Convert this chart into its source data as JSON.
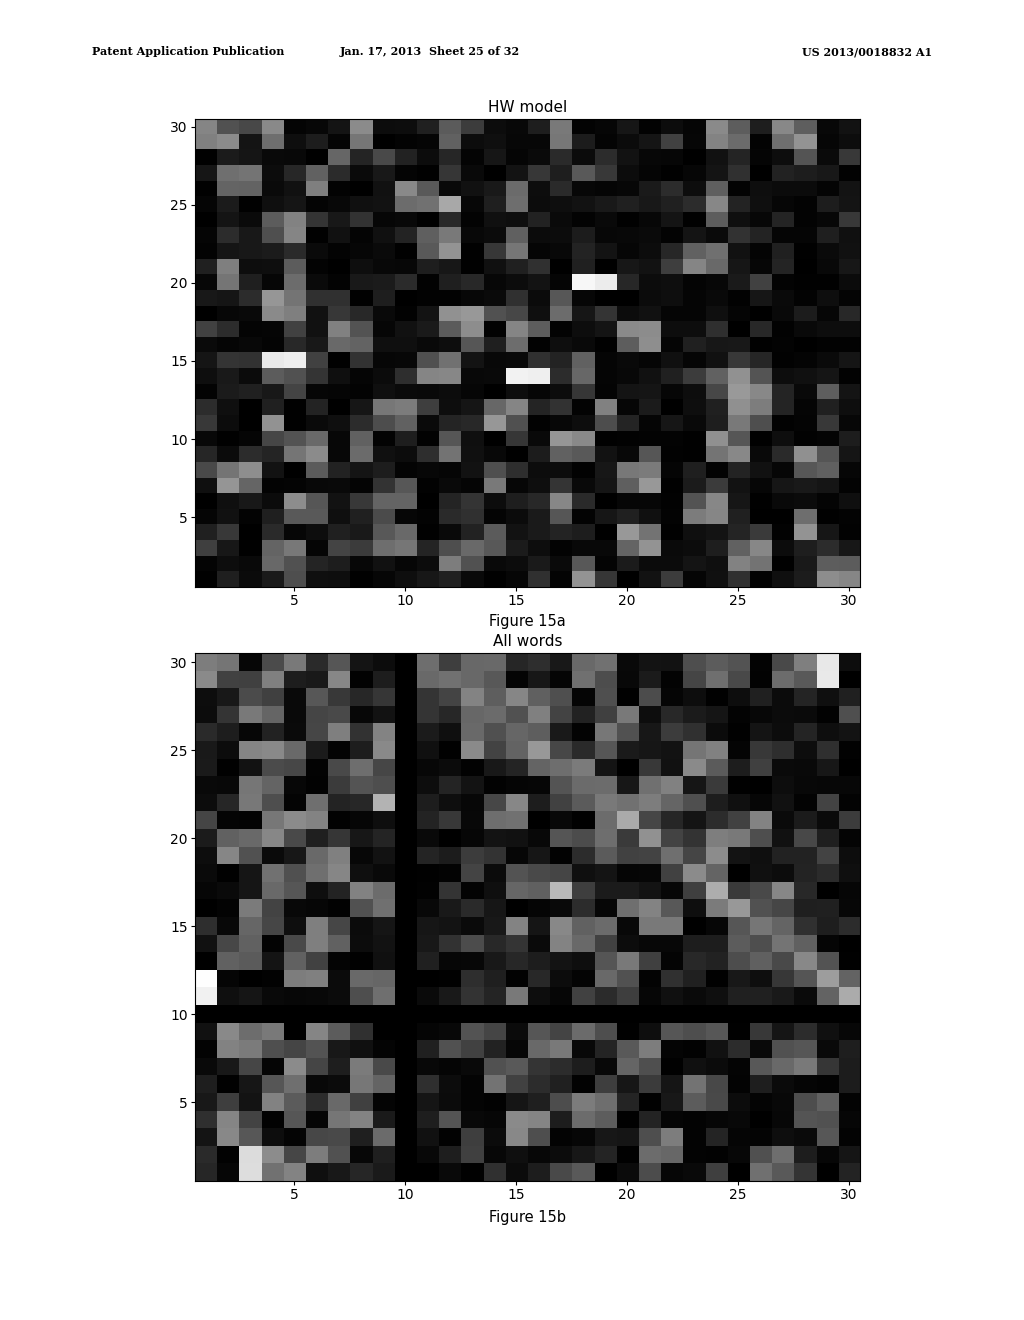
{
  "title_a": "HW model",
  "title_b": "All words",
  "caption_a": "Figure 15a",
  "caption_b": "Figure 15b",
  "header_line1": "Patent Application Publication",
  "header_line2": "Jan. 17, 2013  Sheet 25 of 32",
  "header_line3": "US 2013/0018832 A1",
  "n": 30,
  "background_color": "#ffffff",
  "fig_width": 10.24,
  "fig_height": 13.2,
  "dpi": 100
}
